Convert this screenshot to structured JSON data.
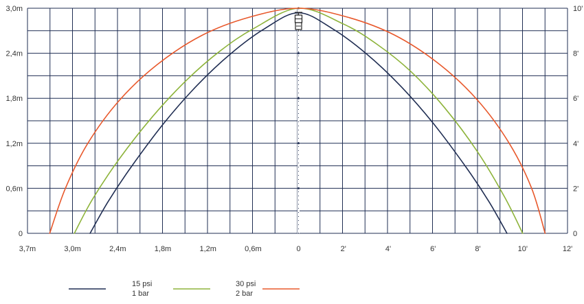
{
  "chart_data": {
    "type": "line",
    "title": "",
    "grid": true,
    "colors": {
      "grid": "#1f2d52",
      "text": "#333333"
    },
    "axes": {
      "left_y": {
        "ticks": [
          "0",
          "0,6m",
          "1,2m",
          "1,8m",
          "2,4m",
          "3,0m"
        ],
        "range": [
          0,
          3.0
        ],
        "unit": "m"
      },
      "right_y": {
        "ticks": [
          "0",
          "2'",
          "4'",
          "6'",
          "8'",
          "10'"
        ],
        "range": [
          0,
          10
        ],
        "unit": "ft"
      },
      "x_left_metric": {
        "ticks": [
          "3,7m",
          "3,0m",
          "2,4m",
          "1,8m",
          "1,2m",
          "0,6m"
        ],
        "unit": "m"
      },
      "x_center": "0",
      "x_right_feet": {
        "ticks": [
          "2'",
          "4'",
          "6'",
          "8'",
          "10'",
          "12'"
        ],
        "range": [
          0,
          12
        ],
        "unit": "ft"
      }
    },
    "x_unit": "ft",
    "y_unit": "ft",
    "series": [
      {
        "name": "15 psi 1 bar",
        "color": "#1f2d52",
        "points": [
          [
            -9.3,
            0
          ],
          [
            -8.5,
            1.4
          ],
          [
            -7.5,
            2.9
          ],
          [
            -6,
            4.9
          ],
          [
            -4.5,
            6.6
          ],
          [
            -3,
            8.0
          ],
          [
            -1.5,
            9.1
          ],
          [
            0,
            9.8
          ],
          [
            1.5,
            9.1
          ],
          [
            3,
            8.0
          ],
          [
            4.5,
            6.6
          ],
          [
            6,
            4.9
          ],
          [
            7.5,
            2.9
          ],
          [
            8.5,
            1.4
          ],
          [
            9.3,
            0
          ]
        ]
      },
      {
        "name": "30 psi 2 bar",
        "color": "#8db33a",
        "points": [
          [
            -10,
            0
          ],
          [
            -9.2,
            1.5
          ],
          [
            -8,
            3.3
          ],
          [
            -6.5,
            5.2
          ],
          [
            -5,
            6.8
          ],
          [
            -3.5,
            8.1
          ],
          [
            -2,
            9.1
          ],
          [
            0,
            10
          ],
          [
            2,
            9.3
          ],
          [
            3.5,
            8.4
          ],
          [
            5,
            7.2
          ],
          [
            6.5,
            5.6
          ],
          [
            8,
            3.6
          ],
          [
            9.2,
            1.6
          ],
          [
            10,
            0
          ]
        ]
      },
      {
        "name": "",
        "color": "#e8582b",
        "points": [
          [
            -11.1,
            0
          ],
          [
            -10.4,
            2
          ],
          [
            -9.4,
            4
          ],
          [
            -8,
            5.9
          ],
          [
            -6.3,
            7.5
          ],
          [
            -4.3,
            8.8
          ],
          [
            -2.2,
            9.6
          ],
          [
            0,
            10
          ],
          [
            2.2,
            9.6
          ],
          [
            4.3,
            8.8
          ],
          [
            6.3,
            7.5
          ],
          [
            8,
            5.9
          ],
          [
            9.4,
            4
          ],
          [
            10.4,
            2
          ],
          [
            11,
            0
          ]
        ]
      }
    ],
    "legend": {
      "position": "bottom",
      "entries": [
        {
          "label_line1": "15 psi",
          "label_line2": "1 bar"
        },
        {
          "label_line1": "30 psi",
          "label_line2": "2 bar"
        }
      ]
    },
    "sprinkler_icon": "sprinkler-head-icon"
  }
}
